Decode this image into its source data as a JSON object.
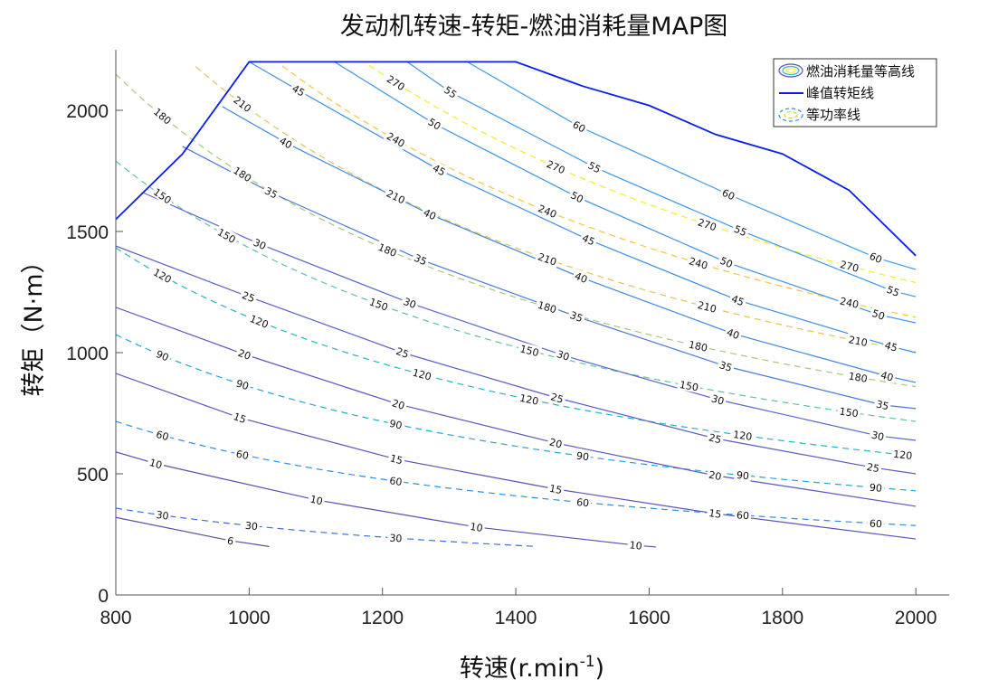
{
  "chart_data": {
    "type": "line",
    "title": "发动机转速-转矩-燃油消耗量MAP图",
    "xlabel": "转速(r.min",
    "xlabel_sup": "-1",
    "xlabel_close": ")",
    "ylabel": "转矩（N·m）",
    "xlim": [
      800,
      2050
    ],
    "ylim": [
      0,
      2250
    ],
    "xticks": [
      800,
      1000,
      1200,
      1400,
      1600,
      1800,
      2000
    ],
    "yticks": [
      0,
      500,
      1000,
      1500,
      2000
    ],
    "grid": false,
    "legend": {
      "placement": "top-right",
      "entries": [
        "燃油消耗量等高线",
        "峰值转矩线",
        "等功率线"
      ]
    },
    "peak_torque": {
      "name": "峰值转矩线",
      "color": "#0a1ef0",
      "points": [
        [
          800,
          1550
        ],
        [
          900,
          1820
        ],
        [
          1000,
          2200
        ],
        [
          1400,
          2200
        ],
        [
          1500,
          2100
        ],
        [
          1600,
          2020
        ],
        [
          1700,
          1900
        ],
        [
          1800,
          1820
        ],
        [
          1900,
          1670
        ],
        [
          2000,
          1400
        ]
      ]
    },
    "fuel_contours": [
      {
        "level": 6,
        "label": "6",
        "color": "#5a4fa8",
        "points": [
          [
            800,
            320
          ],
          [
            972,
            224
          ],
          [
            1030,
            200
          ]
        ]
      },
      {
        "level": 10,
        "label": "10",
        "color": "#5a4fb0",
        "points": [
          [
            800,
            590
          ],
          [
            860,
            542
          ],
          [
            1101,
            392
          ],
          [
            1341,
            280
          ],
          [
            1580,
            205
          ],
          [
            1610,
            198
          ]
        ]
      },
      {
        "level": 15,
        "label": "15",
        "color": "#5a52b8",
        "points": [
          [
            800,
            914
          ],
          [
            986,
            731
          ],
          [
            1221,
            560
          ],
          [
            1460,
            437
          ],
          [
            1699,
            336
          ],
          [
            2000,
            231
          ]
        ]
      },
      {
        "level": 20,
        "label": "20",
        "color": "#5a56bf",
        "points": [
          [
            800,
            1187
          ],
          [
            993,
            993
          ],
          [
            1224,
            787
          ],
          [
            1460,
            627
          ],
          [
            1699,
            493
          ],
          [
            2000,
            366
          ]
        ]
      },
      {
        "level": 25,
        "label": "25",
        "color": "#5a5cc6",
        "points": [
          [
            800,
            1440
          ],
          [
            999,
            1231
          ],
          [
            1230,
            1000
          ],
          [
            1462,
            813
          ],
          [
            1699,
            646
          ],
          [
            1936,
            526
          ],
          [
            2000,
            500
          ]
        ]
      },
      {
        "level": 30,
        "label": "30",
        "color": "#5866cc",
        "points": [
          [
            841,
            1660
          ],
          [
            1016,
            1448
          ],
          [
            1241,
            1205
          ],
          [
            1471,
            989
          ],
          [
            1703,
            806
          ],
          [
            1943,
            657
          ],
          [
            2000,
            638
          ]
        ]
      },
      {
        "level": 35,
        "label": "35",
        "color": "#4a78d8",
        "points": [
          [
            900,
            1851
          ],
          [
            1033,
            1660
          ],
          [
            1257,
            1384
          ],
          [
            1491,
            1149
          ],
          [
            1715,
            944
          ],
          [
            1950,
            784
          ],
          [
            2000,
            769
          ]
        ]
      },
      {
        "level": 40,
        "label": "40",
        "color": "#3f86e0",
        "points": [
          [
            960,
            2015
          ],
          [
            1055,
            1866
          ],
          [
            1271,
            1571
          ],
          [
            1498,
            1310
          ],
          [
            1726,
            1078
          ],
          [
            1957,
            903
          ],
          [
            2000,
            877
          ]
        ]
      },
      {
        "level": 45,
        "label": "45",
        "color": "#3a8ee6",
        "points": [
          [
            1000,
            2200
          ],
          [
            1074,
            2082
          ],
          [
            1285,
            1754
          ],
          [
            1509,
            1466
          ],
          [
            1733,
            1216
          ],
          [
            1963,
            1026
          ],
          [
            2000,
            1000
          ]
        ]
      },
      {
        "level": 50,
        "label": "50",
        "color": "#3a92e8",
        "points": [
          [
            1128,
            2200
          ],
          [
            1278,
            1944
          ],
          [
            1492,
            1642
          ],
          [
            1716,
            1373
          ],
          [
            1944,
            1157
          ],
          [
            2000,
            1123
          ]
        ]
      },
      {
        "level": 55,
        "label": "55",
        "color": "#3a96ea",
        "points": [
          [
            1237,
            2200
          ],
          [
            1302,
            2075
          ],
          [
            1518,
            1765
          ],
          [
            1737,
            1504
          ],
          [
            1966,
            1254
          ],
          [
            2000,
            1231
          ]
        ]
      },
      {
        "level": 60,
        "label": "60",
        "color": "#3a9aec",
        "points": [
          [
            1327,
            2200
          ],
          [
            1495,
            1933
          ],
          [
            1719,
            1653
          ],
          [
            1940,
            1392
          ],
          [
            2000,
            1343
          ]
        ]
      }
    ],
    "power_lines": {
      "formula": "T = 9550 * P / n",
      "lines": [
        {
          "power_kw": 30,
          "label": "30",
          "color": "#3a72dc",
          "x_range": [
            800,
            1430
          ]
        },
        {
          "power_kw": 60,
          "label": "60",
          "color": "#2f8ee2",
          "x_range": [
            800,
            2000
          ]
        },
        {
          "power_kw": 90,
          "label": "90",
          "color": "#22a6d8",
          "x_range": [
            800,
            2000
          ]
        },
        {
          "power_kw": 120,
          "label": "120",
          "color": "#22b6c4",
          "x_range": [
            800,
            2000
          ]
        },
        {
          "power_kw": 150,
          "label": "150",
          "color": "#5cc4a0",
          "x_range": [
            800,
            2000
          ]
        },
        {
          "power_kw": 180,
          "label": "180",
          "color": "#aac67c",
          "x_range": [
            800,
            2000
          ]
        },
        {
          "power_kw": 210,
          "label": "210",
          "color": "#e2c25c",
          "x_range": [
            800,
            2000
          ]
        },
        {
          "power_kw": 240,
          "label": "240",
          "color": "#f6c43c",
          "x_range": [
            800,
            2000
          ]
        },
        {
          "power_kw": 270,
          "label": "270",
          "color": "#f2ee20",
          "x_range": [
            800,
            2000
          ]
        }
      ]
    }
  }
}
